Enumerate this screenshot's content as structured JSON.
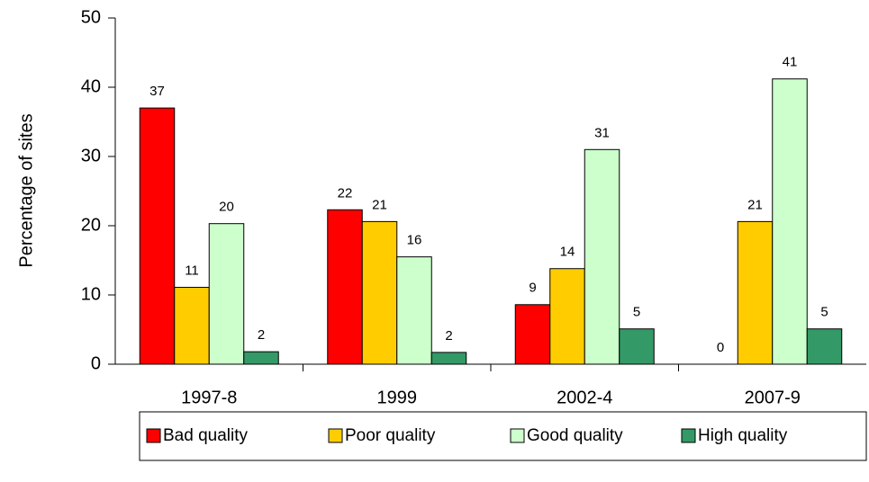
{
  "chart_data": {
    "type": "bar",
    "y_label": "Percentage of sites",
    "categories": [
      "1997-8",
      "1999",
      "2002-4",
      "2007-9"
    ],
    "series": [
      {
        "name": "Bad quality",
        "color": "#ff0000",
        "values": [
          37,
          22.3,
          8.6,
          0
        ],
        "value_labels": [
          "37",
          "22",
          "9",
          "0"
        ]
      },
      {
        "name": "Poor quality",
        "color": "#ffcc00",
        "values": [
          11.1,
          20.6,
          13.8,
          20.6
        ],
        "value_labels": [
          "11",
          "21",
          "14",
          "21"
        ]
      },
      {
        "name": "Good quality",
        "color": "#ccffcc",
        "values": [
          20.3,
          15.5,
          31,
          41.2
        ],
        "value_labels": [
          "20",
          "16",
          "31",
          "41"
        ]
      },
      {
        "name": "High quality",
        "color": "#339966",
        "values": [
          1.8,
          1.7,
          5.1,
          5.1
        ],
        "value_labels": [
          "2",
          "2",
          "5",
          "5"
        ]
      }
    ],
    "ylim": [
      0,
      50
    ],
    "yticks": [
      0,
      10,
      20,
      30,
      40,
      50
    ],
    "grid": false,
    "legend": "bottom"
  }
}
